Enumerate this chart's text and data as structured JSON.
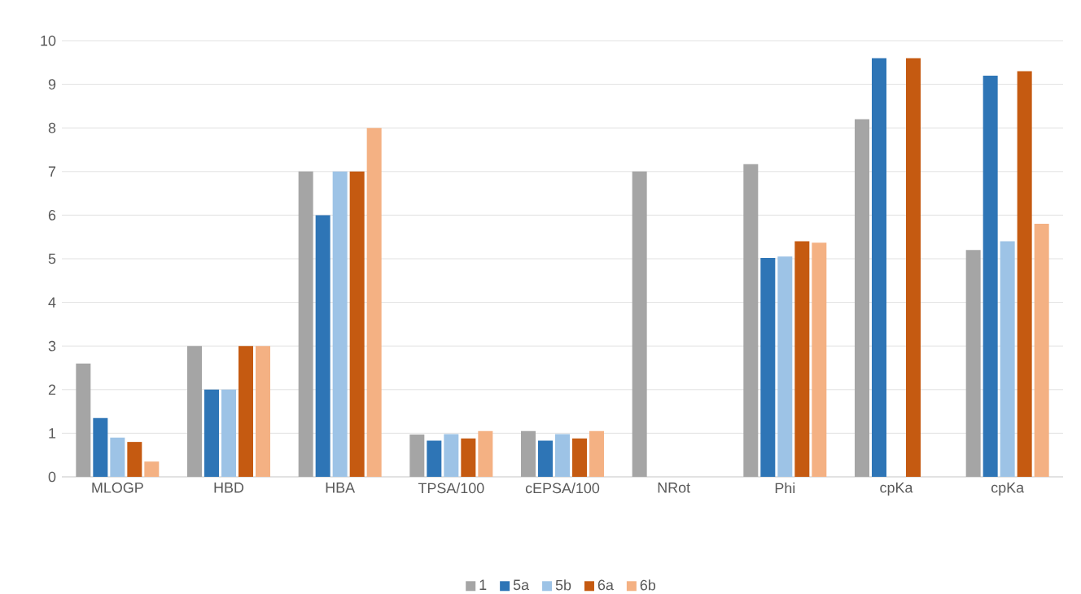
{
  "chart_data": {
    "type": "bar",
    "categories": [
      "MLOGP",
      "HBD",
      "HBA",
      "TPSA/100",
      "cEPSA/100",
      "NRot",
      "Phi",
      "cpKa",
      "cpKa"
    ],
    "series": [
      {
        "name": "1",
        "color": "#a5a5a5",
        "values": [
          2.6,
          3,
          7,
          0.97,
          1.05,
          7,
          7.17,
          8.2,
          5.2
        ]
      },
      {
        "name": "5a",
        "color": "#2e75b6",
        "values": [
          1.35,
          2,
          6,
          0.83,
          0.83,
          null,
          5.02,
          9.6,
          9.2
        ]
      },
      {
        "name": "5b",
        "color": "#9dc3e6",
        "values": [
          0.9,
          2,
          7,
          0.98,
          0.98,
          null,
          5.05,
          null,
          5.4
        ]
      },
      {
        "name": "6a",
        "color": "#c55a11",
        "values": [
          0.8,
          3,
          7,
          0.88,
          0.88,
          null,
          5.4,
          9.6,
          9.3
        ]
      },
      {
        "name": "6b",
        "color": "#f4b183",
        "values": [
          0.35,
          3,
          8,
          1.05,
          1.05,
          null,
          5.37,
          null,
          5.8
        ]
      }
    ],
    "ylim": [
      0,
      10
    ],
    "yticks": [
      0,
      1,
      2,
      3,
      4,
      5,
      6,
      7,
      8,
      9,
      10
    ],
    "grid": "y",
    "legend": "bottom"
  }
}
